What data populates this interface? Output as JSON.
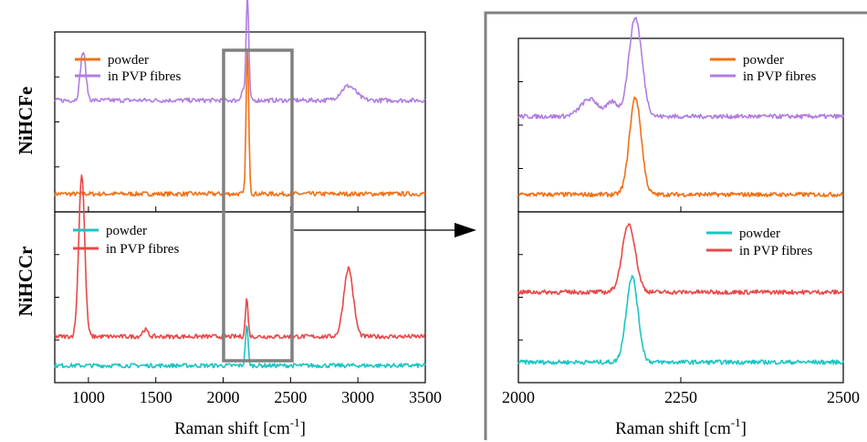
{
  "colors": {
    "orange": "#f07016",
    "purple": "#b07ee0",
    "cyan": "#1cc4c4",
    "red": "#e84848",
    "gray": "#808080"
  },
  "labels": {
    "top_side": "NiHCFe",
    "bottom_side": "NiHCCr",
    "xlabel_left": "Raman shift [cm",
    "xlabel_right": "Raman shift [cm",
    "xlabel_sup": "-1",
    "xlabel_close": "]"
  },
  "legends": {
    "fe": [
      "powder",
      "in PVP fibres"
    ],
    "cr": [
      "powder",
      "in PVP fibres"
    ]
  },
  "chart_data": [
    {
      "type": "line",
      "panel": "left-top",
      "xlim": [
        750,
        3500
      ],
      "xticks": [
        1000,
        1500,
        2000,
        2500,
        3000,
        3500
      ],
      "series": [
        {
          "name": "powder",
          "color": "#f07016",
          "baseline": 0.1,
          "peaks": [
            [
              2180,
              0.8,
              10
            ]
          ]
        },
        {
          "name": "in PVP fibres",
          "color": "#b07ee0",
          "baseline": 0.62,
          "peaks": [
            [
              960,
              0.27,
              20
            ],
            [
              2145,
              0.06,
              12
            ],
            [
              2180,
              0.58,
              10
            ],
            [
              2930,
              0.08,
              55
            ]
          ]
        }
      ]
    },
    {
      "type": "line",
      "panel": "left-bottom",
      "xlim": [
        750,
        3500
      ],
      "xticks": [
        1000,
        1500,
        2000,
        2500,
        3000,
        3500
      ],
      "series": [
        {
          "name": "powder",
          "color": "#1cc4c4",
          "baseline": 0.1,
          "peaks": [
            [
              2175,
              0.24,
              10
            ]
          ]
        },
        {
          "name": "in PVP fibres",
          "color": "#e84848",
          "baseline": 0.27,
          "peaks": [
            [
              950,
              0.95,
              22
            ],
            [
              1420,
              0.04,
              20
            ],
            [
              2175,
              0.22,
              10
            ],
            [
              2930,
              0.4,
              35
            ]
          ]
        }
      ]
    },
    {
      "type": "line",
      "panel": "right-top",
      "xlim": [
        2000,
        2500
      ],
      "xticks": [
        2000,
        2250,
        2500
      ],
      "series": [
        {
          "name": "powder",
          "color": "#f07016",
          "baseline": 0.1,
          "peaks": [
            [
              2180,
              0.56,
              9
            ]
          ]
        },
        {
          "name": "in PVP fibres",
          "color": "#b07ee0",
          "baseline": 0.55,
          "peaks": [
            [
              2110,
              0.1,
              14
            ],
            [
              2145,
              0.08,
              8
            ],
            [
              2180,
              0.57,
              10
            ]
          ]
        }
      ]
    },
    {
      "type": "line",
      "panel": "right-bottom",
      "xlim": [
        2000,
        2500
      ],
      "xticks": [
        2000,
        2250,
        2500
      ],
      "series": [
        {
          "name": "powder",
          "color": "#1cc4c4",
          "baseline": 0.12,
          "peaks": [
            [
              2175,
              0.5,
              9
            ]
          ]
        },
        {
          "name": "in PVP fibres",
          "color": "#e84848",
          "baseline": 0.53,
          "peaks": [
            [
              2170,
              0.4,
              10
            ]
          ]
        }
      ]
    }
  ]
}
